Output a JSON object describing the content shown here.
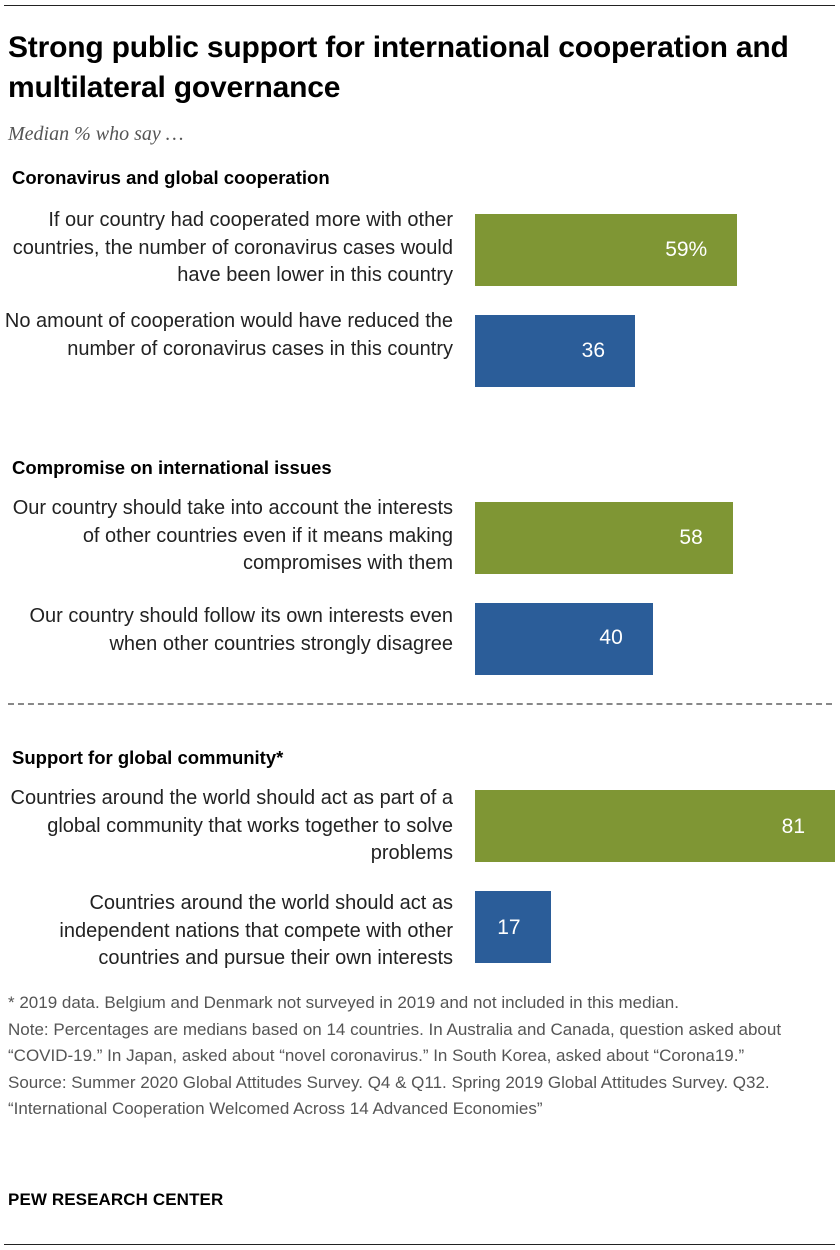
{
  "title": "Strong public support for international cooperation and multilateral governance",
  "subtitle": "Median % who say …",
  "colors": {
    "green": "#7f9634",
    "blue": "#2b5d99"
  },
  "chart_data": {
    "type": "bar",
    "orientation": "horizontal",
    "xlim": [
      0,
      81
    ],
    "sections": [
      {
        "heading": "Coronavirus and global cooperation",
        "bars": [
          {
            "label": "If our country had cooperated more with other countries, the number of coronavirus cases would have been lower in this country",
            "value": 59,
            "value_label": "59%",
            "color": "#7f9634"
          },
          {
            "label": "No amount of cooperation would have reduced the number of coronavirus cases in this country",
            "value": 36,
            "value_label": "36",
            "color": "#2b5d99"
          }
        ]
      },
      {
        "heading": "Compromise on international issues",
        "bars": [
          {
            "label": "Our country should take into account the interests of other countries even if it means making compromises with them",
            "value": 58,
            "value_label": "58",
            "color": "#7f9634"
          },
          {
            "label": "Our country should follow its own interests even when other countries strongly disagree",
            "value": 40,
            "value_label": "40",
            "color": "#2b5d99"
          }
        ]
      },
      {
        "heading": "Support for global community*",
        "bars": [
          {
            "label": "Countries around the world should act as part of a global community that works together to solve problems",
            "value": 81,
            "value_label": "81",
            "color": "#7f9634"
          },
          {
            "label": "Countries around the world should act as independent nations that compete with other countries and pursue their own interests",
            "value": 17,
            "value_label": "17",
            "color": "#2b5d99"
          }
        ]
      }
    ]
  },
  "notes": {
    "footnote": "* 2019 data. Belgium and Denmark not surveyed in 2019 and not included in this median.",
    "note": "Note: Percentages are medians based on 14 countries. In Australia and Canada, question asked about “COVID-19.” In Japan, asked about “novel coronavirus.” In South Korea, asked about “Corona19.”",
    "source": "Source: Summer 2020 Global Attitudes Survey. Q4 & Q11. Spring 2019 Global Attitudes Survey. Q32.",
    "report": "“International Cooperation Welcomed Across 14 Advanced Economies”"
  },
  "brand": "PEW RESEARCH CENTER"
}
